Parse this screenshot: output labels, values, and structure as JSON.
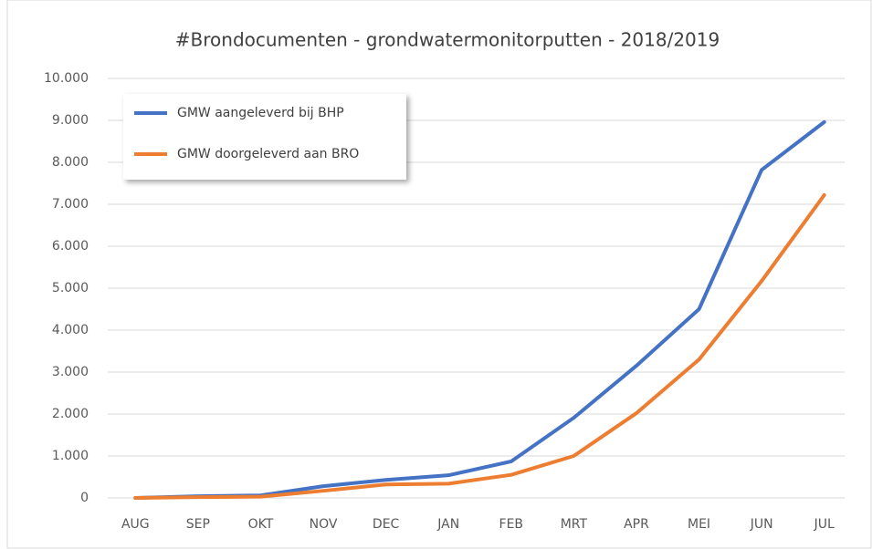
{
  "chart_data": {
    "type": "line",
    "title": "#Brondocumenten - grondwatermonitorputten - 2018/2019",
    "categories": [
      "AUG",
      "SEP",
      "OKT",
      "NOV",
      "DEC",
      "JAN",
      "FEB",
      "MRT",
      "APR",
      "MEI",
      "JUN",
      "JUL"
    ],
    "series": [
      {
        "name": "GMW aangeleverd bij BHP",
        "color": "#4472c4",
        "values": [
          0,
          40,
          60,
          280,
          430,
          540,
          870,
          1910,
          3150,
          4500,
          7820,
          8960
        ]
      },
      {
        "name": "GMW doorgeleverd aan BRO",
        "color": "#ed7d31",
        "values": [
          0,
          20,
          30,
          170,
          320,
          340,
          550,
          1000,
          2020,
          3300,
          5170,
          7220
        ]
      }
    ],
    "ylim": [
      0,
      10000
    ],
    "yticks": [
      0,
      {
        "value": 1000,
        "label": "1.000"
      },
      {
        "value": 2000,
        "label": "2.000"
      },
      {
        "value": 3000,
        "label": "3.000"
      },
      {
        "value": 4000,
        "label": "4.000"
      },
      {
        "value": 5000,
        "label": "5.000"
      },
      {
        "value": 6000,
        "label": "6.000"
      },
      {
        "value": 7000,
        "label": "7.000"
      },
      {
        "value": 8000,
        "label": "8.000"
      },
      {
        "value": 9000,
        "label": "9.000"
      },
      {
        "value": 10000,
        "label": "10.000"
      }
    ],
    "grid": true,
    "legend": "upper left"
  }
}
